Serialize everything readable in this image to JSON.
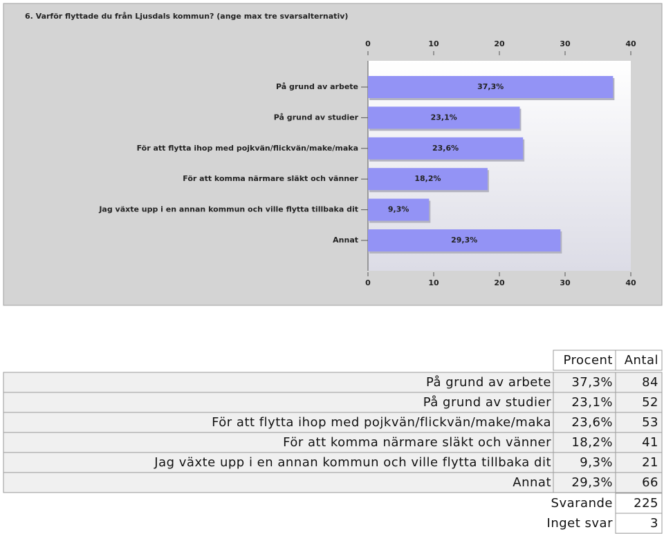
{
  "chart_data": {
    "type": "bar",
    "orientation": "horizontal",
    "title": "6. Varför flyttade du från Ljusdals kommun? (ange max tre svarsalternativ)",
    "categories": [
      "På grund av arbete",
      "På grund av studier",
      "För att flytta ihop med pojkvän/flickvän/make/maka",
      "För att komma närmare släkt och vänner",
      "Jag växte upp i en annan kommun och ville flytta tillbaka dit",
      "Annat"
    ],
    "values": [
      37.3,
      23.1,
      23.6,
      18.2,
      9.3,
      29.3
    ],
    "value_labels": [
      "37,3%",
      "23,1%",
      "23,6%",
      "18,2%",
      "9,3%",
      "29,3%"
    ],
    "color": "#9393f5",
    "xlim": [
      0,
      40
    ],
    "xticks": [
      0,
      10,
      20,
      30,
      40
    ]
  },
  "table": {
    "headers": [
      "Procent",
      "Antal"
    ],
    "counts": [
      84,
      52,
      53,
      41,
      21,
      66
    ],
    "summary": [
      {
        "label": "Svarande",
        "value": 225
      },
      {
        "label": "Inget svar",
        "value": 3
      }
    ]
  }
}
